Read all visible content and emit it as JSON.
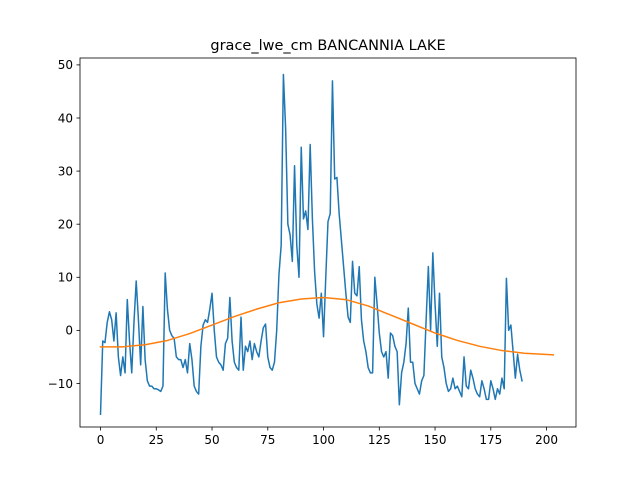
{
  "chart_data": {
    "type": "line",
    "title": "grace_lwe_cm BANCANNIA LAKE",
    "xlabel": "",
    "ylabel": "",
    "xlim": [
      -9.2,
      213.2
    ],
    "ylim": [
      -18.2,
      51.3
    ],
    "xticks": [
      0,
      25,
      50,
      75,
      100,
      125,
      150,
      175,
      200
    ],
    "yticks": [
      -10,
      0,
      10,
      20,
      30,
      40,
      50
    ],
    "grid": false,
    "legend": "none",
    "series": [
      {
        "color": "#1f77b4",
        "points": [
          [
            0,
            -15.8
          ],
          [
            1,
            -2
          ],
          [
            2,
            -2.3
          ],
          [
            3,
            1.5
          ],
          [
            4,
            3.5
          ],
          [
            5,
            2
          ],
          [
            6,
            -2
          ],
          [
            7,
            3.3
          ],
          [
            8,
            -5
          ],
          [
            9,
            -8.5
          ],
          [
            10,
            -5
          ],
          [
            11,
            -8
          ],
          [
            12,
            5.8
          ],
          [
            13,
            -2
          ],
          [
            14,
            -8
          ],
          [
            15,
            1.5
          ],
          [
            16,
            9.3
          ],
          [
            17,
            2
          ],
          [
            18,
            -6.5
          ],
          [
            19,
            4.5
          ],
          [
            20,
            -5.5
          ],
          [
            21,
            -9.5
          ],
          [
            22,
            -10.5
          ],
          [
            23,
            -10.5
          ],
          [
            24,
            -11
          ],
          [
            25,
            -11
          ],
          [
            26,
            -11.2
          ],
          [
            27,
            -11.5
          ],
          [
            28,
            -10.5
          ],
          [
            29,
            10.8
          ],
          [
            30,
            4
          ],
          [
            31,
            0
          ],
          [
            32,
            -1
          ],
          [
            33,
            -1.5
          ],
          [
            34,
            -5
          ],
          [
            35,
            -5.5
          ],
          [
            36,
            -5.5
          ],
          [
            37,
            -7
          ],
          [
            38,
            -5.5
          ],
          [
            39,
            -8
          ],
          [
            40,
            -2.5
          ],
          [
            41,
            -5.5
          ],
          [
            42,
            -10.5
          ],
          [
            43,
            -11.5
          ],
          [
            44,
            -12
          ],
          [
            45,
            -3
          ],
          [
            46,
            1
          ],
          [
            47,
            2
          ],
          [
            48,
            1.5
          ],
          [
            49,
            4
          ],
          [
            50,
            7
          ],
          [
            51,
            0
          ],
          [
            52,
            -5
          ],
          [
            53,
            -6
          ],
          [
            54,
            -6.5
          ],
          [
            55,
            -7.5
          ],
          [
            56,
            -2.5
          ],
          [
            57,
            -1.5
          ],
          [
            58,
            6.2
          ],
          [
            59,
            -2
          ],
          [
            60,
            -6
          ],
          [
            61,
            -7
          ],
          [
            62,
            -7.5
          ],
          [
            63,
            2.5
          ],
          [
            64,
            -7.5
          ],
          [
            65,
            -3
          ],
          [
            66,
            -4
          ],
          [
            67,
            -2
          ],
          [
            68,
            -5.5
          ],
          [
            69,
            -2.5
          ],
          [
            70,
            -4
          ],
          [
            71,
            -5
          ],
          [
            72,
            -2
          ],
          [
            73,
            0.5
          ],
          [
            74,
            1.2
          ],
          [
            75,
            -5
          ],
          [
            76,
            -7
          ],
          [
            77,
            -7.5
          ],
          [
            78,
            -6
          ],
          [
            79,
            0
          ],
          [
            80,
            10.5
          ],
          [
            81,
            16
          ],
          [
            82,
            48.2
          ],
          [
            83,
            38
          ],
          [
            84,
            20
          ],
          [
            85,
            18
          ],
          [
            86,
            13
          ],
          [
            87,
            31
          ],
          [
            88,
            16
          ],
          [
            89,
            10
          ],
          [
            90,
            34.5
          ],
          [
            91,
            21
          ],
          [
            92,
            22.5
          ],
          [
            93,
            19
          ],
          [
            94,
            35
          ],
          [
            95,
            21
          ],
          [
            96,
            11
          ],
          [
            97,
            5
          ],
          [
            98,
            2.3
          ],
          [
            99,
            7
          ],
          [
            100,
            -1.2
          ],
          [
            101,
            10
          ],
          [
            102,
            20.5
          ],
          [
            103,
            22
          ],
          [
            104,
            47
          ],
          [
            105,
            28.5
          ],
          [
            106,
            28.8
          ],
          [
            107,
            22
          ],
          [
            108,
            17
          ],
          [
            109,
            12
          ],
          [
            110,
            7
          ],
          [
            111,
            2.5
          ],
          [
            112,
            1.5
          ],
          [
            113,
            13
          ],
          [
            114,
            7
          ],
          [
            115,
            6.5
          ],
          [
            116,
            12
          ],
          [
            117,
            2
          ],
          [
            118,
            -2
          ],
          [
            119,
            -4
          ],
          [
            120,
            -7
          ],
          [
            121,
            -8
          ],
          [
            122,
            -8
          ],
          [
            123,
            10
          ],
          [
            124,
            5
          ],
          [
            125,
            -0.5
          ],
          [
            126,
            -4
          ],
          [
            127,
            -5
          ],
          [
            128,
            -4
          ],
          [
            129,
            -9
          ],
          [
            130,
            -0.5
          ],
          [
            131,
            -1
          ],
          [
            132,
            -3
          ],
          [
            133,
            -4
          ],
          [
            134,
            -14
          ],
          [
            135,
            -8
          ],
          [
            136,
            -6
          ],
          [
            137,
            -2.5
          ],
          [
            138,
            4.2
          ],
          [
            139,
            -6
          ],
          [
            140,
            -6
          ],
          [
            141,
            -10
          ],
          [
            142,
            -11
          ],
          [
            143,
            -12
          ],
          [
            144,
            -9.5
          ],
          [
            145,
            -8.5
          ],
          [
            146,
            2
          ],
          [
            147,
            12
          ],
          [
            148,
            0
          ],
          [
            149,
            14.6
          ],
          [
            150,
            5
          ],
          [
            151,
            -3
          ],
          [
            152,
            7
          ],
          [
            153,
            -5
          ],
          [
            154,
            -7
          ],
          [
            155,
            -10
          ],
          [
            156,
            -11.5
          ],
          [
            157,
            -11
          ],
          [
            158,
            -9
          ],
          [
            159,
            -11
          ],
          [
            160,
            -10.5
          ],
          [
            161,
            -11.5
          ],
          [
            162,
            -12.5
          ],
          [
            163,
            -5
          ],
          [
            164,
            -10.5
          ],
          [
            165,
            -11
          ],
          [
            166,
            -7.5
          ],
          [
            167,
            -9
          ],
          [
            168,
            -11
          ],
          [
            169,
            -12
          ],
          [
            170,
            -12.5
          ],
          [
            171,
            -9.5
          ],
          [
            172,
            -11
          ],
          [
            173,
            -13
          ],
          [
            174,
            -13
          ],
          [
            175,
            -9.5
          ],
          [
            176,
            -11
          ],
          [
            177,
            -13
          ],
          [
            178,
            -11
          ],
          [
            179,
            -12
          ],
          [
            180,
            -9
          ],
          [
            181,
            -11
          ],
          [
            182,
            9.8
          ],
          [
            183,
            0
          ],
          [
            184,
            1
          ],
          [
            185,
            -4
          ],
          [
            186,
            -9
          ],
          [
            187,
            -4.5
          ],
          [
            188,
            -7.5
          ],
          [
            189,
            -9.5
          ]
        ]
      },
      {
        "color": "#ff7f0e",
        "points": [
          [
            0,
            -3.1
          ],
          [
            10,
            -3.1
          ],
          [
            20,
            -2.7
          ],
          [
            30,
            -1.9
          ],
          [
            40,
            -0.6
          ],
          [
            50,
            1.0
          ],
          [
            60,
            2.6
          ],
          [
            70,
            4.0
          ],
          [
            80,
            5.2
          ],
          [
            90,
            5.9
          ],
          [
            100,
            6.2
          ],
          [
            110,
            5.8
          ],
          [
            120,
            4.6
          ],
          [
            130,
            2.9
          ],
          [
            140,
            1.2
          ],
          [
            150,
            -0.5
          ],
          [
            160,
            -1.9
          ],
          [
            170,
            -3.0
          ],
          [
            180,
            -3.8
          ],
          [
            190,
            -4.3
          ],
          [
            203,
            -4.6
          ]
        ]
      }
    ]
  }
}
